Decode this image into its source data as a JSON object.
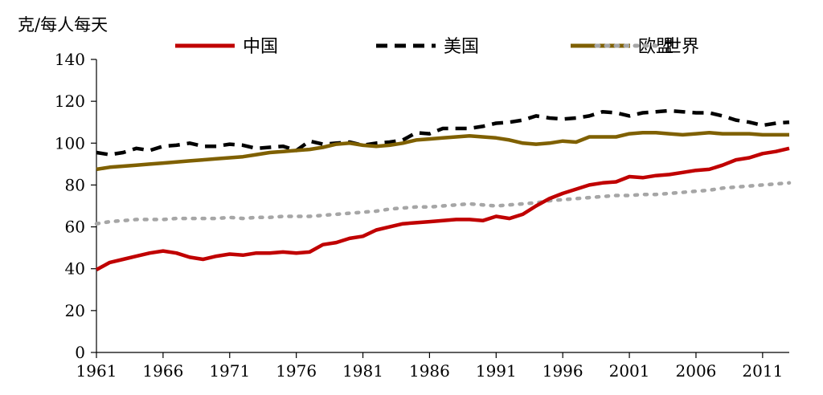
{
  "chart_data": {
    "type": "line",
    "ylabel": "克/每人每天",
    "ylim": [
      0,
      140
    ],
    "xlim": [
      1961,
      2013
    ],
    "y_ticks": [
      "0",
      "20",
      "40",
      "60",
      "80",
      "100",
      "120",
      "140"
    ],
    "x_ticks": [
      "1961",
      "1966",
      "1971",
      "1976",
      "1981",
      "1986",
      "1991",
      "1996",
      "2001",
      "2006",
      "2011"
    ],
    "grid": false,
    "legend_position": "top",
    "x": [
      1961,
      1962,
      1963,
      1964,
      1965,
      1966,
      1967,
      1968,
      1969,
      1970,
      1971,
      1972,
      1973,
      1974,
      1975,
      1976,
      1977,
      1978,
      1979,
      1980,
      1981,
      1982,
      1983,
      1984,
      1985,
      1986,
      1987,
      1988,
      1989,
      1990,
      1991,
      1992,
      1993,
      1994,
      1995,
      1996,
      1997,
      1998,
      1999,
      2000,
      2001,
      2002,
      2003,
      2004,
      2005,
      2006,
      2007,
      2008,
      2009,
      2010,
      2011,
      2012,
      2013
    ],
    "series": [
      {
        "name": "中国",
        "color": "#c00000",
        "style": "solid",
        "values": [
          39.5,
          43,
          44.5,
          46,
          47.5,
          48.5,
          47.5,
          45.5,
          44.5,
          46,
          47,
          46.5,
          47.5,
          47.5,
          48,
          47.5,
          48,
          51.5,
          52.5,
          54.5,
          55.5,
          58.5,
          60,
          61.5,
          62,
          62.5,
          63,
          63.5,
          63.5,
          63,
          65,
          64,
          66,
          70,
          73.5,
          76,
          78,
          80,
          81,
          81.5,
          84,
          83.5,
          84.5,
          85,
          86,
          87,
          87.5,
          89.5,
          92,
          93,
          95,
          96,
          97.5
        ]
      },
      {
        "name": "美国",
        "color": "#000000",
        "style": "dashed",
        "values": [
          95.5,
          94.5,
          95.5,
          97.5,
          96.5,
          98.5,
          99,
          100,
          98.5,
          98.5,
          99.5,
          99,
          97.5,
          98,
          98.5,
          96.5,
          101,
          99.5,
          100,
          100.5,
          99,
          100,
          100.5,
          101.5,
          105,
          104.5,
          107,
          107,
          107,
          108,
          109.5,
          110,
          111,
          113,
          112,
          111.5,
          112,
          113,
          115,
          114.5,
          113,
          114.5,
          115,
          115.5,
          115,
          114.5,
          114.5,
          113,
          111,
          110,
          108.5,
          109.5,
          110
        ]
      },
      {
        "name": "欧盟",
        "color": "#7f6000",
        "style": "solid",
        "values": [
          87.5,
          88.5,
          89,
          89.5,
          90,
          90.5,
          91,
          91.5,
          92,
          92.5,
          93,
          93.5,
          94.5,
          95.5,
          96,
          96.5,
          97,
          98,
          99.5,
          100,
          99,
          98.5,
          99,
          100,
          101.5,
          102,
          102.5,
          103,
          103.5,
          103,
          102.5,
          101.5,
          100,
          99.5,
          100,
          101,
          100.5,
          103,
          103,
          103,
          104.5,
          105,
          105,
          104.5,
          104,
          104.5,
          105,
          104.5,
          104.5,
          104.5,
          104,
          104,
          104
        ]
      },
      {
        "name": "世界",
        "color": "#a6a6a6",
        "style": "dotted",
        "values": [
          61.5,
          62.5,
          63,
          63.5,
          63.5,
          63.5,
          64,
          64,
          64,
          64,
          64.5,
          64,
          64.5,
          64.5,
          65,
          65,
          65,
          65.5,
          66,
          66.5,
          67,
          67.5,
          68.5,
          69,
          69.5,
          69.5,
          70,
          70.5,
          71,
          70.5,
          70,
          70.5,
          71,
          71.5,
          72.5,
          73,
          73.5,
          74,
          74.5,
          75,
          75,
          75.5,
          75.5,
          76,
          76.5,
          77,
          77.5,
          78.5,
          79,
          79.5,
          80,
          80.5,
          81
        ]
      }
    ]
  }
}
